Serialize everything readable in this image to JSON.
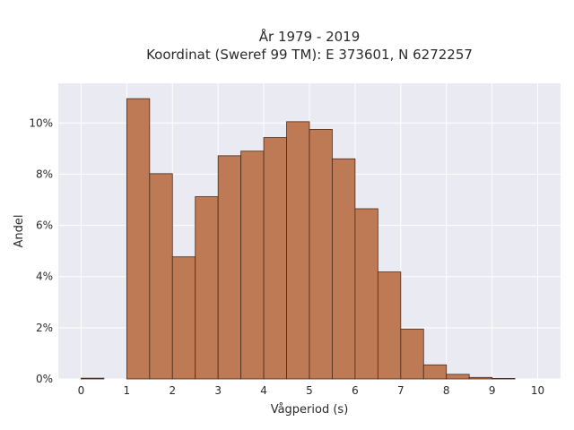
{
  "chart_data": {
    "type": "bar",
    "title": "År 1979 - 2019",
    "subtitle": "Koordinat (Sweref 99 TM): E 373601, N 6272257",
    "xlabel": "Vågperiod (s)",
    "ylabel": "Andel",
    "bin_width": 0.5,
    "bins": [
      {
        "start": 0.0,
        "value": 0.0003
      },
      {
        "start": 1.0,
        "value": 0.1095
      },
      {
        "start": 1.5,
        "value": 0.0802
      },
      {
        "start": 2.0,
        "value": 0.0477
      },
      {
        "start": 2.5,
        "value": 0.0712
      },
      {
        "start": 3.0,
        "value": 0.0872
      },
      {
        "start": 3.5,
        "value": 0.089
      },
      {
        "start": 4.0,
        "value": 0.0943
      },
      {
        "start": 4.5,
        "value": 0.1005
      },
      {
        "start": 5.0,
        "value": 0.0975
      },
      {
        "start": 5.5,
        "value": 0.086
      },
      {
        "start": 6.0,
        "value": 0.0665
      },
      {
        "start": 6.5,
        "value": 0.0418
      },
      {
        "start": 7.0,
        "value": 0.0195
      },
      {
        "start": 7.5,
        "value": 0.0055
      },
      {
        "start": 8.0,
        "value": 0.0018
      },
      {
        "start": 8.5,
        "value": 0.0006
      },
      {
        "start": 9.0,
        "value": 0.0002
      }
    ],
    "xlim": [
      -0.5,
      10.5
    ],
    "ylim": [
      0,
      0.1155
    ],
    "xticks": [
      0,
      1,
      2,
      3,
      4,
      5,
      6,
      7,
      8,
      9,
      10
    ],
    "xtick_labels": [
      "0",
      "1",
      "2",
      "3",
      "4",
      "5",
      "6",
      "7",
      "8",
      "9",
      "10"
    ],
    "yticks": [
      0,
      0.02,
      0.04,
      0.06,
      0.08,
      0.1
    ],
    "ytick_labels": [
      "0%",
      "2%",
      "4%",
      "6%",
      "8%",
      "10%"
    ],
    "grid": true,
    "legend": "none",
    "colors": {
      "bar_fill": "#bd7a54",
      "bar_stroke": "#4a2a1a",
      "plot_bg": "#eaeaf2",
      "grid": "#ffffff",
      "text": "#2a2a2a"
    }
  }
}
